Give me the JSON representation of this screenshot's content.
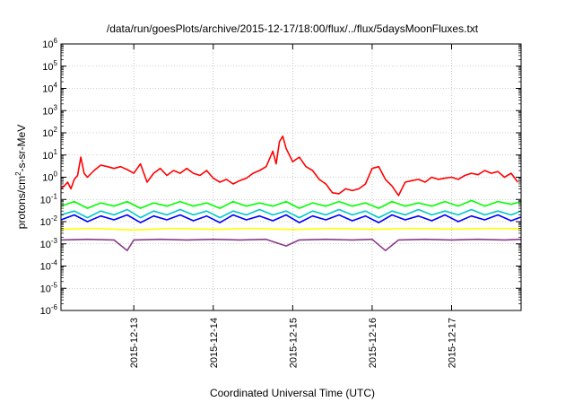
{
  "chart_data": {
    "type": "line",
    "title": "/data/run/goesPlots/archive/2015-12-17/18:00/flux/../flux/5daysMoonFluxes.txt",
    "xlabel": "Coordinated Universal Time (UTC)",
    "ylabel": {
      "base": "protons/cm",
      "sup": "2",
      "rest": "-s-sr-MeV"
    },
    "y_scale": "log",
    "ylim": [
      1e-06,
      1000000.0
    ],
    "xlim": [
      "2015-12-12T02:00",
      "2015-12-17T21:00"
    ],
    "grid": true,
    "legend": "none",
    "y_ticks": [
      {
        "base": "10",
        "exp": "-6"
      },
      {
        "base": "10",
        "exp": "-5"
      },
      {
        "base": "10",
        "exp": "-4"
      },
      {
        "base": "10",
        "exp": "-3"
      },
      {
        "base": "10",
        "exp": "-2"
      },
      {
        "base": "10",
        "exp": "-1"
      },
      {
        "base": "10",
        "exp": "0"
      },
      {
        "base": "10",
        "exp": "1"
      },
      {
        "base": "10",
        "exp": "2"
      },
      {
        "base": "10",
        "exp": "3"
      },
      {
        "base": "10",
        "exp": "4"
      },
      {
        "base": "10",
        "exp": "5"
      },
      {
        "base": "10",
        "exp": "6"
      }
    ],
    "x_ticks": [
      "2015-12-13",
      "2015-12-14",
      "2015-12-15",
      "2015-12-16",
      "2015-12-17"
    ],
    "series": [
      {
        "color": "#ff0000",
        "points": [
          [
            "2015-12-12T02:00",
            0.3
          ],
          [
            "2015-12-12T03:00",
            0.4
          ],
          [
            "2015-12-12T04:00",
            0.6
          ],
          [
            "2015-12-12T05:00",
            0.3
          ],
          [
            "2015-12-12T06:00",
            0.8
          ],
          [
            "2015-12-12T07:00",
            1.2
          ],
          [
            "2015-12-12T08:00",
            8
          ],
          [
            "2015-12-12T09:00",
            1.5
          ],
          [
            "2015-12-12T10:00",
            1.0
          ],
          [
            "2015-12-12T12:00",
            2.0
          ],
          [
            "2015-12-12T14:00",
            3.5
          ],
          [
            "2015-12-12T16:00",
            3.0
          ],
          [
            "2015-12-12T18:00",
            2.5
          ],
          [
            "2015-12-12T20:00",
            3.0
          ],
          [
            "2015-12-12T22:00",
            2.2
          ],
          [
            "2015-12-13T00:00",
            1.5
          ],
          [
            "2015-12-13T02:00",
            4.0
          ],
          [
            "2015-12-13T04:00",
            0.6
          ],
          [
            "2015-12-13T06:00",
            1.5
          ],
          [
            "2015-12-13T08:00",
            2.5
          ],
          [
            "2015-12-13T10:00",
            1.2
          ],
          [
            "2015-12-13T12:00",
            2.0
          ],
          [
            "2015-12-13T14:00",
            1.5
          ],
          [
            "2015-12-13T16:00",
            2.5
          ],
          [
            "2015-12-13T18:00",
            1.5
          ],
          [
            "2015-12-13T20:00",
            1.2
          ],
          [
            "2015-12-13T22:00",
            2.0
          ],
          [
            "2015-12-14T00:00",
            0.9
          ],
          [
            "2015-12-14T02:00",
            0.6
          ],
          [
            "2015-12-14T04:00",
            0.8
          ],
          [
            "2015-12-14T06:00",
            0.5
          ],
          [
            "2015-12-14T08:00",
            0.7
          ],
          [
            "2015-12-14T10:00",
            0.9
          ],
          [
            "2015-12-14T12:00",
            1.5
          ],
          [
            "2015-12-14T14:00",
            2.0
          ],
          [
            "2015-12-14T16:00",
            3.0
          ],
          [
            "2015-12-14T18:00",
            15
          ],
          [
            "2015-12-14T19:00",
            4.0
          ],
          [
            "2015-12-14T20:00",
            40
          ],
          [
            "2015-12-14T21:00",
            70
          ],
          [
            "2015-12-14T22:00",
            20
          ],
          [
            "2015-12-15T00:00",
            5.0
          ],
          [
            "2015-12-15T02:00",
            8.0
          ],
          [
            "2015-12-15T04:00",
            3.0
          ],
          [
            "2015-12-15T06:00",
            2.0
          ],
          [
            "2015-12-15T08:00",
            0.8
          ],
          [
            "2015-12-15T10:00",
            0.5
          ],
          [
            "2015-12-15T12:00",
            0.2
          ],
          [
            "2015-12-15T14:00",
            0.18
          ],
          [
            "2015-12-15T16:00",
            0.3
          ],
          [
            "2015-12-15T18:00",
            0.25
          ],
          [
            "2015-12-15T20:00",
            0.3
          ],
          [
            "2015-12-15T22:00",
            0.5
          ],
          [
            "2015-12-16T00:00",
            2.5
          ],
          [
            "2015-12-16T02:00",
            3.0
          ],
          [
            "2015-12-16T04:00",
            0.8
          ],
          [
            "2015-12-16T06:00",
            0.4
          ],
          [
            "2015-12-16T08:00",
            0.15
          ],
          [
            "2015-12-16T10:00",
            0.6
          ],
          [
            "2015-12-16T12:00",
            0.7
          ],
          [
            "2015-12-16T14:00",
            0.8
          ],
          [
            "2015-12-16T16:00",
            0.6
          ],
          [
            "2015-12-16T18:00",
            1.0
          ],
          [
            "2015-12-16T20:00",
            0.8
          ],
          [
            "2015-12-16T22:00",
            0.9
          ],
          [
            "2015-12-17T00:00",
            1.0
          ],
          [
            "2015-12-17T02:00",
            0.8
          ],
          [
            "2015-12-17T04:00",
            1.2
          ],
          [
            "2015-12-17T06:00",
            1.5
          ],
          [
            "2015-12-17T08:00",
            1.3
          ],
          [
            "2015-12-17T10:00",
            2.0
          ],
          [
            "2015-12-17T12:00",
            1.5
          ],
          [
            "2015-12-17T14:00",
            1.8
          ],
          [
            "2015-12-17T16:00",
            1.0
          ],
          [
            "2015-12-17T18:00",
            1.5
          ],
          [
            "2015-12-17T20:00",
            0.6
          ]
        ]
      },
      {
        "color": "#00ff00",
        "points": [
          [
            "2015-12-12T02:00",
            0.05
          ],
          [
            "2015-12-12T06:00",
            0.08
          ],
          [
            "2015-12-12T10:00",
            0.04
          ],
          [
            "2015-12-12T14:00",
            0.07
          ],
          [
            "2015-12-12T18:00",
            0.05
          ],
          [
            "2015-12-12T22:00",
            0.08
          ],
          [
            "2015-12-13T02:00",
            0.04
          ],
          [
            "2015-12-13T06:00",
            0.07
          ],
          [
            "2015-12-13T10:00",
            0.05
          ],
          [
            "2015-12-13T14:00",
            0.08
          ],
          [
            "2015-12-13T18:00",
            0.05
          ],
          [
            "2015-12-13T22:00",
            0.07
          ],
          [
            "2015-12-14T02:00",
            0.04
          ],
          [
            "2015-12-14T06:00",
            0.08
          ],
          [
            "2015-12-14T10:00",
            0.05
          ],
          [
            "2015-12-14T14:00",
            0.07
          ],
          [
            "2015-12-14T18:00",
            0.05
          ],
          [
            "2015-12-14T22:00",
            0.08
          ],
          [
            "2015-12-15T02:00",
            0.04
          ],
          [
            "2015-12-15T06:00",
            0.07
          ],
          [
            "2015-12-15T10:00",
            0.05
          ],
          [
            "2015-12-15T14:00",
            0.08
          ],
          [
            "2015-12-15T18:00",
            0.05
          ],
          [
            "2015-12-15T22:00",
            0.07
          ],
          [
            "2015-12-16T02:00",
            0.04
          ],
          [
            "2015-12-16T06:00",
            0.08
          ],
          [
            "2015-12-16T10:00",
            0.05
          ],
          [
            "2015-12-16T14:00",
            0.07
          ],
          [
            "2015-12-16T18:00",
            0.05
          ],
          [
            "2015-12-16T22:00",
            0.08
          ],
          [
            "2015-12-17T02:00",
            0.05
          ],
          [
            "2015-12-17T06:00",
            0.09
          ],
          [
            "2015-12-17T10:00",
            0.05
          ],
          [
            "2015-12-17T14:00",
            0.08
          ],
          [
            "2015-12-17T18:00",
            0.06
          ],
          [
            "2015-12-17T21:00",
            0.08
          ]
        ]
      },
      {
        "color": "#00c8c8",
        "points": [
          [
            "2015-12-12T02:00",
            0.02
          ],
          [
            "2015-12-12T06:00",
            0.03
          ],
          [
            "2015-12-12T10:00",
            0.015
          ],
          [
            "2015-12-12T14:00",
            0.03
          ],
          [
            "2015-12-12T18:00",
            0.02
          ],
          [
            "2015-12-12T22:00",
            0.035
          ],
          [
            "2015-12-13T02:00",
            0.015
          ],
          [
            "2015-12-13T06:00",
            0.03
          ],
          [
            "2015-12-13T10:00",
            0.02
          ],
          [
            "2015-12-13T14:00",
            0.035
          ],
          [
            "2015-12-13T18:00",
            0.02
          ],
          [
            "2015-12-13T22:00",
            0.03
          ],
          [
            "2015-12-14T02:00",
            0.015
          ],
          [
            "2015-12-14T06:00",
            0.03
          ],
          [
            "2015-12-14T10:00",
            0.02
          ],
          [
            "2015-12-14T14:00",
            0.035
          ],
          [
            "2015-12-14T18:00",
            0.02
          ],
          [
            "2015-12-14T22:00",
            0.03
          ],
          [
            "2015-12-15T02:00",
            0.015
          ],
          [
            "2015-12-15T06:00",
            0.03
          ],
          [
            "2015-12-15T10:00",
            0.02
          ],
          [
            "2015-12-15T14:00",
            0.035
          ],
          [
            "2015-12-15T18:00",
            0.02
          ],
          [
            "2015-12-15T22:00",
            0.03
          ],
          [
            "2015-12-16T02:00",
            0.015
          ],
          [
            "2015-12-16T06:00",
            0.03
          ],
          [
            "2015-12-16T10:00",
            0.02
          ],
          [
            "2015-12-16T14:00",
            0.035
          ],
          [
            "2015-12-16T18:00",
            0.02
          ],
          [
            "2015-12-16T22:00",
            0.03
          ],
          [
            "2015-12-17T02:00",
            0.02
          ],
          [
            "2015-12-17T06:00",
            0.035
          ],
          [
            "2015-12-17T10:00",
            0.02
          ],
          [
            "2015-12-17T14:00",
            0.03
          ],
          [
            "2015-12-17T18:00",
            0.02
          ],
          [
            "2015-12-17T21:00",
            0.03
          ]
        ]
      },
      {
        "color": "#0000ff",
        "points": [
          [
            "2015-12-12T02:00",
            0.012
          ],
          [
            "2015-12-12T06:00",
            0.02
          ],
          [
            "2015-12-12T10:00",
            0.01
          ],
          [
            "2015-12-12T14:00",
            0.018
          ],
          [
            "2015-12-12T18:00",
            0.012
          ],
          [
            "2015-12-12T22:00",
            0.02
          ],
          [
            "2015-12-13T02:00",
            0.009
          ],
          [
            "2015-12-13T06:00",
            0.018
          ],
          [
            "2015-12-13T10:00",
            0.012
          ],
          [
            "2015-12-13T14:00",
            0.02
          ],
          [
            "2015-12-13T18:00",
            0.011
          ],
          [
            "2015-12-13T22:00",
            0.018
          ],
          [
            "2015-12-14T02:00",
            0.009
          ],
          [
            "2015-12-14T06:00",
            0.02
          ],
          [
            "2015-12-14T10:00",
            0.012
          ],
          [
            "2015-12-14T14:00",
            0.018
          ],
          [
            "2015-12-14T18:00",
            0.011
          ],
          [
            "2015-12-14T22:00",
            0.02
          ],
          [
            "2015-12-15T02:00",
            0.009
          ],
          [
            "2015-12-15T06:00",
            0.018
          ],
          [
            "2015-12-15T10:00",
            0.012
          ],
          [
            "2015-12-15T14:00",
            0.02
          ],
          [
            "2015-12-15T18:00",
            0.011
          ],
          [
            "2015-12-15T22:00",
            0.018
          ],
          [
            "2015-12-16T02:00",
            0.009
          ],
          [
            "2015-12-16T06:00",
            0.02
          ],
          [
            "2015-12-16T10:00",
            0.012
          ],
          [
            "2015-12-16T14:00",
            0.018
          ],
          [
            "2015-12-16T18:00",
            0.011
          ],
          [
            "2015-12-16T22:00",
            0.02
          ],
          [
            "2015-12-17T02:00",
            0.01
          ],
          [
            "2015-12-17T06:00",
            0.018
          ],
          [
            "2015-12-17T10:00",
            0.012
          ],
          [
            "2015-12-17T14:00",
            0.02
          ],
          [
            "2015-12-17T18:00",
            0.011
          ],
          [
            "2015-12-17T21:00",
            0.016
          ]
        ]
      },
      {
        "color": "#ffff00",
        "points": [
          [
            "2015-12-12T02:00",
            0.0045
          ],
          [
            "2015-12-12T12:00",
            0.005
          ],
          [
            "2015-12-13T00:00",
            0.0042
          ],
          [
            "2015-12-13T12:00",
            0.005
          ],
          [
            "2015-12-14T00:00",
            0.0045
          ],
          [
            "2015-12-14T12:00",
            0.005
          ],
          [
            "2015-12-15T00:00",
            0.0044
          ],
          [
            "2015-12-15T12:00",
            0.005
          ],
          [
            "2015-12-16T00:00",
            0.0045
          ],
          [
            "2015-12-16T12:00",
            0.005
          ],
          [
            "2015-12-17T00:00",
            0.0046
          ],
          [
            "2015-12-17T12:00",
            0.005
          ],
          [
            "2015-12-17T21:00",
            0.0048
          ]
        ]
      },
      {
        "color": "#8b3a8b",
        "points": [
          [
            "2015-12-12T02:00",
            0.0015
          ],
          [
            "2015-12-12T10:00",
            0.0016
          ],
          [
            "2015-12-12T18:00",
            0.0015
          ],
          [
            "2015-12-12T22:00",
            0.0005
          ],
          [
            "2015-12-13T00:00",
            0.0015
          ],
          [
            "2015-12-13T08:00",
            0.0016
          ],
          [
            "2015-12-13T16:00",
            0.0015
          ],
          [
            "2015-12-14T00:00",
            0.0016
          ],
          [
            "2015-12-14T08:00",
            0.0015
          ],
          [
            "2015-12-14T16:00",
            0.0016
          ],
          [
            "2015-12-14T22:00",
            0.0008
          ],
          [
            "2015-12-15T02:00",
            0.0015
          ],
          [
            "2015-12-15T10:00",
            0.0016
          ],
          [
            "2015-12-15T18:00",
            0.0015
          ],
          [
            "2015-12-16T00:00",
            0.0016
          ],
          [
            "2015-12-16T04:00",
            0.0005
          ],
          [
            "2015-12-16T08:00",
            0.0015
          ],
          [
            "2015-12-16T16:00",
            0.0016
          ],
          [
            "2015-12-17T00:00",
            0.0015
          ],
          [
            "2015-12-17T08:00",
            0.0016
          ],
          [
            "2015-12-17T16:00",
            0.0015
          ],
          [
            "2015-12-17T21:00",
            0.0016
          ]
        ]
      }
    ]
  }
}
